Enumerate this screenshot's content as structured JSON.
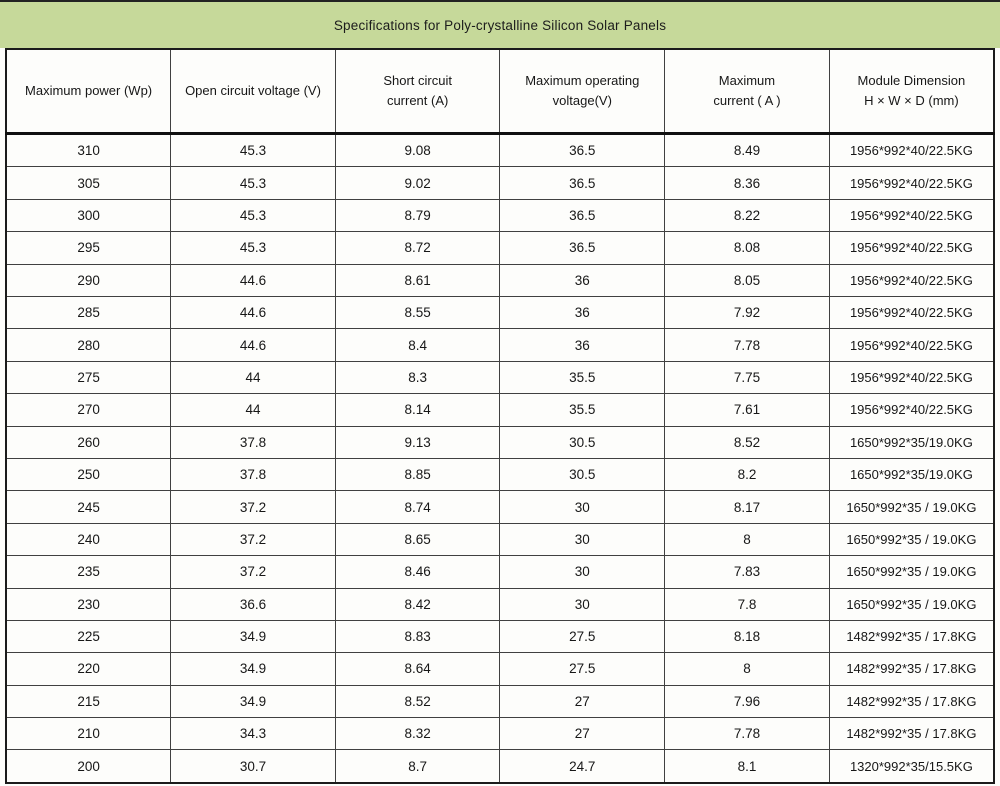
{
  "title_bar": {
    "text": "Specifications for Poly-crystalline Silicon Solar Panels"
  },
  "colors": {
    "title_bg": "#c6d99a",
    "outer_border": "#1b1b1b",
    "grid_line": "#404040",
    "text": "#171717",
    "page_bg": "#fdfdfb"
  },
  "table": {
    "columns": [
      {
        "key": "max-power",
        "label": "Maximum power (Wp)"
      },
      {
        "key": "open-circuit-voltage",
        "label": "Open circuit voltage (V)"
      },
      {
        "key": "short-circuit-current",
        "label": "Short circuit\ncurrent  (A)"
      },
      {
        "key": "max-operating-voltage",
        "label": "Maximum operating\nvoltage(V)"
      },
      {
        "key": "max-current",
        "label": "Maximum\ncurrent ( A )"
      },
      {
        "key": "module-dimension",
        "label": "Module Dimension\nH × W × D (mm)"
      }
    ],
    "rows": [
      [
        "310",
        "45.3",
        "9.08",
        "36.5",
        "8.49",
        "1956*992*40/22.5KG"
      ],
      [
        "305",
        "45.3",
        "9.02",
        "36.5",
        "8.36",
        "1956*992*40/22.5KG"
      ],
      [
        "300",
        "45.3",
        "8.79",
        "36.5",
        "8.22",
        "1956*992*40/22.5KG"
      ],
      [
        "295",
        "45.3",
        "8.72",
        "36.5",
        "8.08",
        "1956*992*40/22.5KG"
      ],
      [
        "290",
        "44.6",
        "8.61",
        "36",
        "8.05",
        "1956*992*40/22.5KG"
      ],
      [
        "285",
        "44.6",
        "8.55",
        "36",
        "7.92",
        "1956*992*40/22.5KG"
      ],
      [
        "280",
        "44.6",
        "8.4",
        "36",
        "7.78",
        "1956*992*40/22.5KG"
      ],
      [
        "275",
        "44",
        "8.3",
        "35.5",
        "7.75",
        "1956*992*40/22.5KG"
      ],
      [
        "270",
        "44",
        "8.14",
        "35.5",
        "7.61",
        "1956*992*40/22.5KG"
      ],
      [
        "260",
        "37.8",
        "9.13",
        "30.5",
        "8.52",
        "1650*992*35/19.0KG"
      ],
      [
        "250",
        "37.8",
        "8.85",
        "30.5",
        "8.2",
        "1650*992*35/19.0KG"
      ],
      [
        "245",
        "37.2",
        "8.74",
        "30",
        "8.17",
        "1650*992*35 / 19.0KG"
      ],
      [
        "240",
        "37.2",
        "8.65",
        "30",
        "8",
        "1650*992*35 / 19.0KG"
      ],
      [
        "235",
        "37.2",
        "8.46",
        "30",
        "7.83",
        "1650*992*35 / 19.0KG"
      ],
      [
        "230",
        "36.6",
        "8.42",
        "30",
        "7.8",
        "1650*992*35 / 19.0KG"
      ],
      [
        "225",
        "34.9",
        "8.83",
        "27.5",
        "8.18",
        "1482*992*35 / 17.8KG"
      ],
      [
        "220",
        "34.9",
        "8.64",
        "27.5",
        "8",
        "1482*992*35 / 17.8KG"
      ],
      [
        "215",
        "34.9",
        "8.52",
        "27",
        "7.96",
        "1482*992*35 / 17.8KG"
      ],
      [
        "210",
        "34.3",
        "8.32",
        "27",
        "7.78",
        "1482*992*35 / 17.8KG"
      ],
      [
        "200",
        "30.7",
        "8.7",
        "24.7",
        "8.1",
        "1320*992*35/15.5KG"
      ]
    ]
  }
}
